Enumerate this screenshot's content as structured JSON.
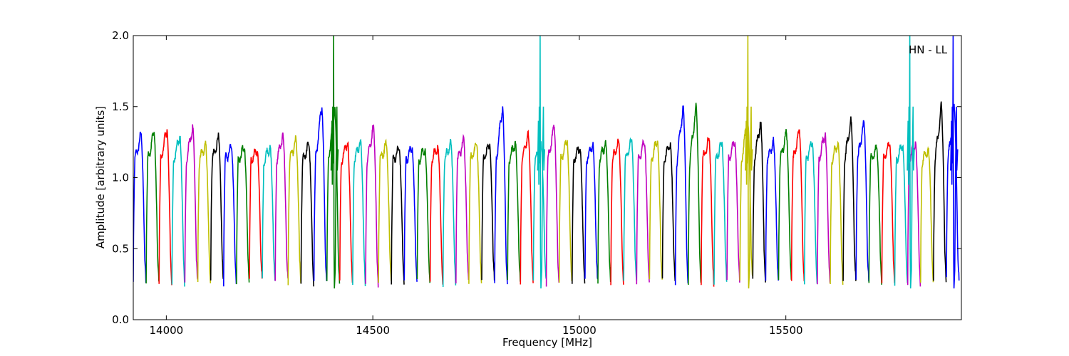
{
  "chart_data": {
    "type": "line",
    "title": "",
    "xlabel": "Frequency [MHz]",
    "ylabel": "Amplitude [arbitrary units]",
    "xlim": [
      13920,
      15925
    ],
    "ylim": [
      0.0,
      2.0
    ],
    "xticks": [
      14000,
      14500,
      15000,
      15500
    ],
    "yticks": [
      0.0,
      0.5,
      1.0,
      1.5,
      2.0
    ],
    "xtick_labels": [
      "14000",
      "14500",
      "15000",
      "15500"
    ],
    "ytick_labels": [
      "0.0",
      "0.5",
      "1.0",
      "1.5",
      "2.0"
    ],
    "grid": false,
    "legend": "none",
    "annotation": "HN - LL",
    "color_cycle": [
      "#0000ff",
      "#007f00",
      "#ff0000",
      "#00bfbf",
      "#bf00bf",
      "#bfbf00",
      "#000000"
    ],
    "subband_start_mhz": 13920,
    "subband_width_mhz": 31.25,
    "subband_count": 64,
    "subband_peaks": [
      1.3,
      1.32,
      1.34,
      1.3,
      1.36,
      1.24,
      1.28,
      1.22,
      1.21,
      1.2,
      1.22,
      1.3,
      1.26,
      1.23,
      1.5,
      1.5,
      1.26,
      1.26,
      1.36,
      1.23,
      1.2,
      1.21,
      1.2,
      1.22,
      1.25,
      1.26,
      1.24,
      1.24,
      1.5,
      1.25,
      1.31,
      1.22,
      1.36,
      1.26,
      1.22,
      1.24,
      1.25,
      1.25,
      1.26,
      1.25,
      1.27,
      1.25,
      1.5,
      1.5,
      1.27,
      1.24,
      1.26,
      1.41,
      1.4,
      1.25,
      1.31,
      1.33,
      1.25,
      1.31,
      1.25,
      1.41,
      1.39,
      1.2,
      1.24,
      1.24,
      1.25,
      1.2,
      1.5,
      1.5
    ],
    "spikes": [
      {
        "x": 14405,
        "y_top": 2.0,
        "color": "#007f00"
      },
      {
        "x": 14905,
        "y_top": 2.0,
        "color": "#00bfbf"
      },
      {
        "x": 15408,
        "y_top": 2.0,
        "color": "#bfbf00"
      },
      {
        "x": 15800,
        "y_top": 2.0,
        "color": "#00bfbf"
      },
      {
        "x": 15905,
        "y_top": 2.0,
        "color": "#0000ff"
      }
    ]
  }
}
